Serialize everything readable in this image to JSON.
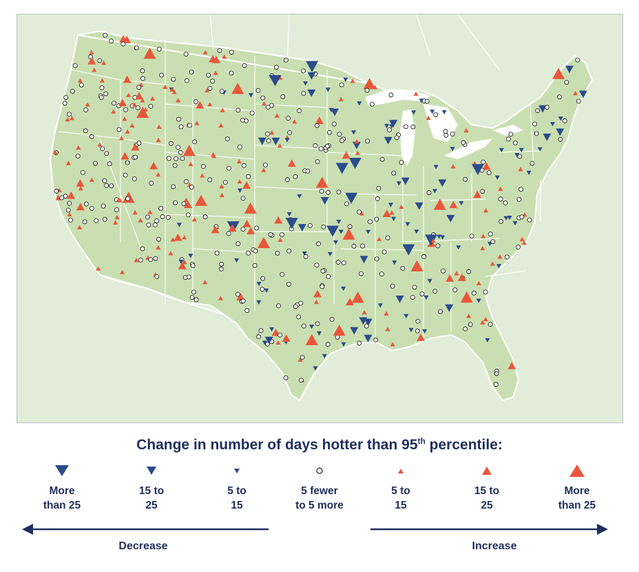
{
  "legend": {
    "title": "Change in number of days hotter than 95",
    "title_sup": "th",
    "title_end": " percentile:",
    "items": [
      {
        "symbol": "down-large",
        "line1": "More",
        "line2": "than 25"
      },
      {
        "symbol": "down-medium",
        "line1": "15 to",
        "line2": "25"
      },
      {
        "symbol": "down-small",
        "line1": "5 to",
        "line2": "15"
      },
      {
        "symbol": "circle",
        "line1": "5 fewer",
        "line2": "to 5 more"
      },
      {
        "symbol": "up-small",
        "line1": "5 to",
        "line2": "15"
      },
      {
        "symbol": "up-medium",
        "line1": "15 to",
        "line2": "25"
      },
      {
        "symbol": "up-large",
        "line1": "More",
        "line2": "than 25"
      }
    ],
    "decrease_label": "Decrease",
    "increase_label": "Increase"
  },
  "colors": {
    "decrease": "#2b4c8c",
    "increase": "#e8573a",
    "land_us": "#c9dfb1",
    "land_other": "#e2edd9",
    "water": "#ffffff",
    "text": "#1f2f5e"
  }
}
